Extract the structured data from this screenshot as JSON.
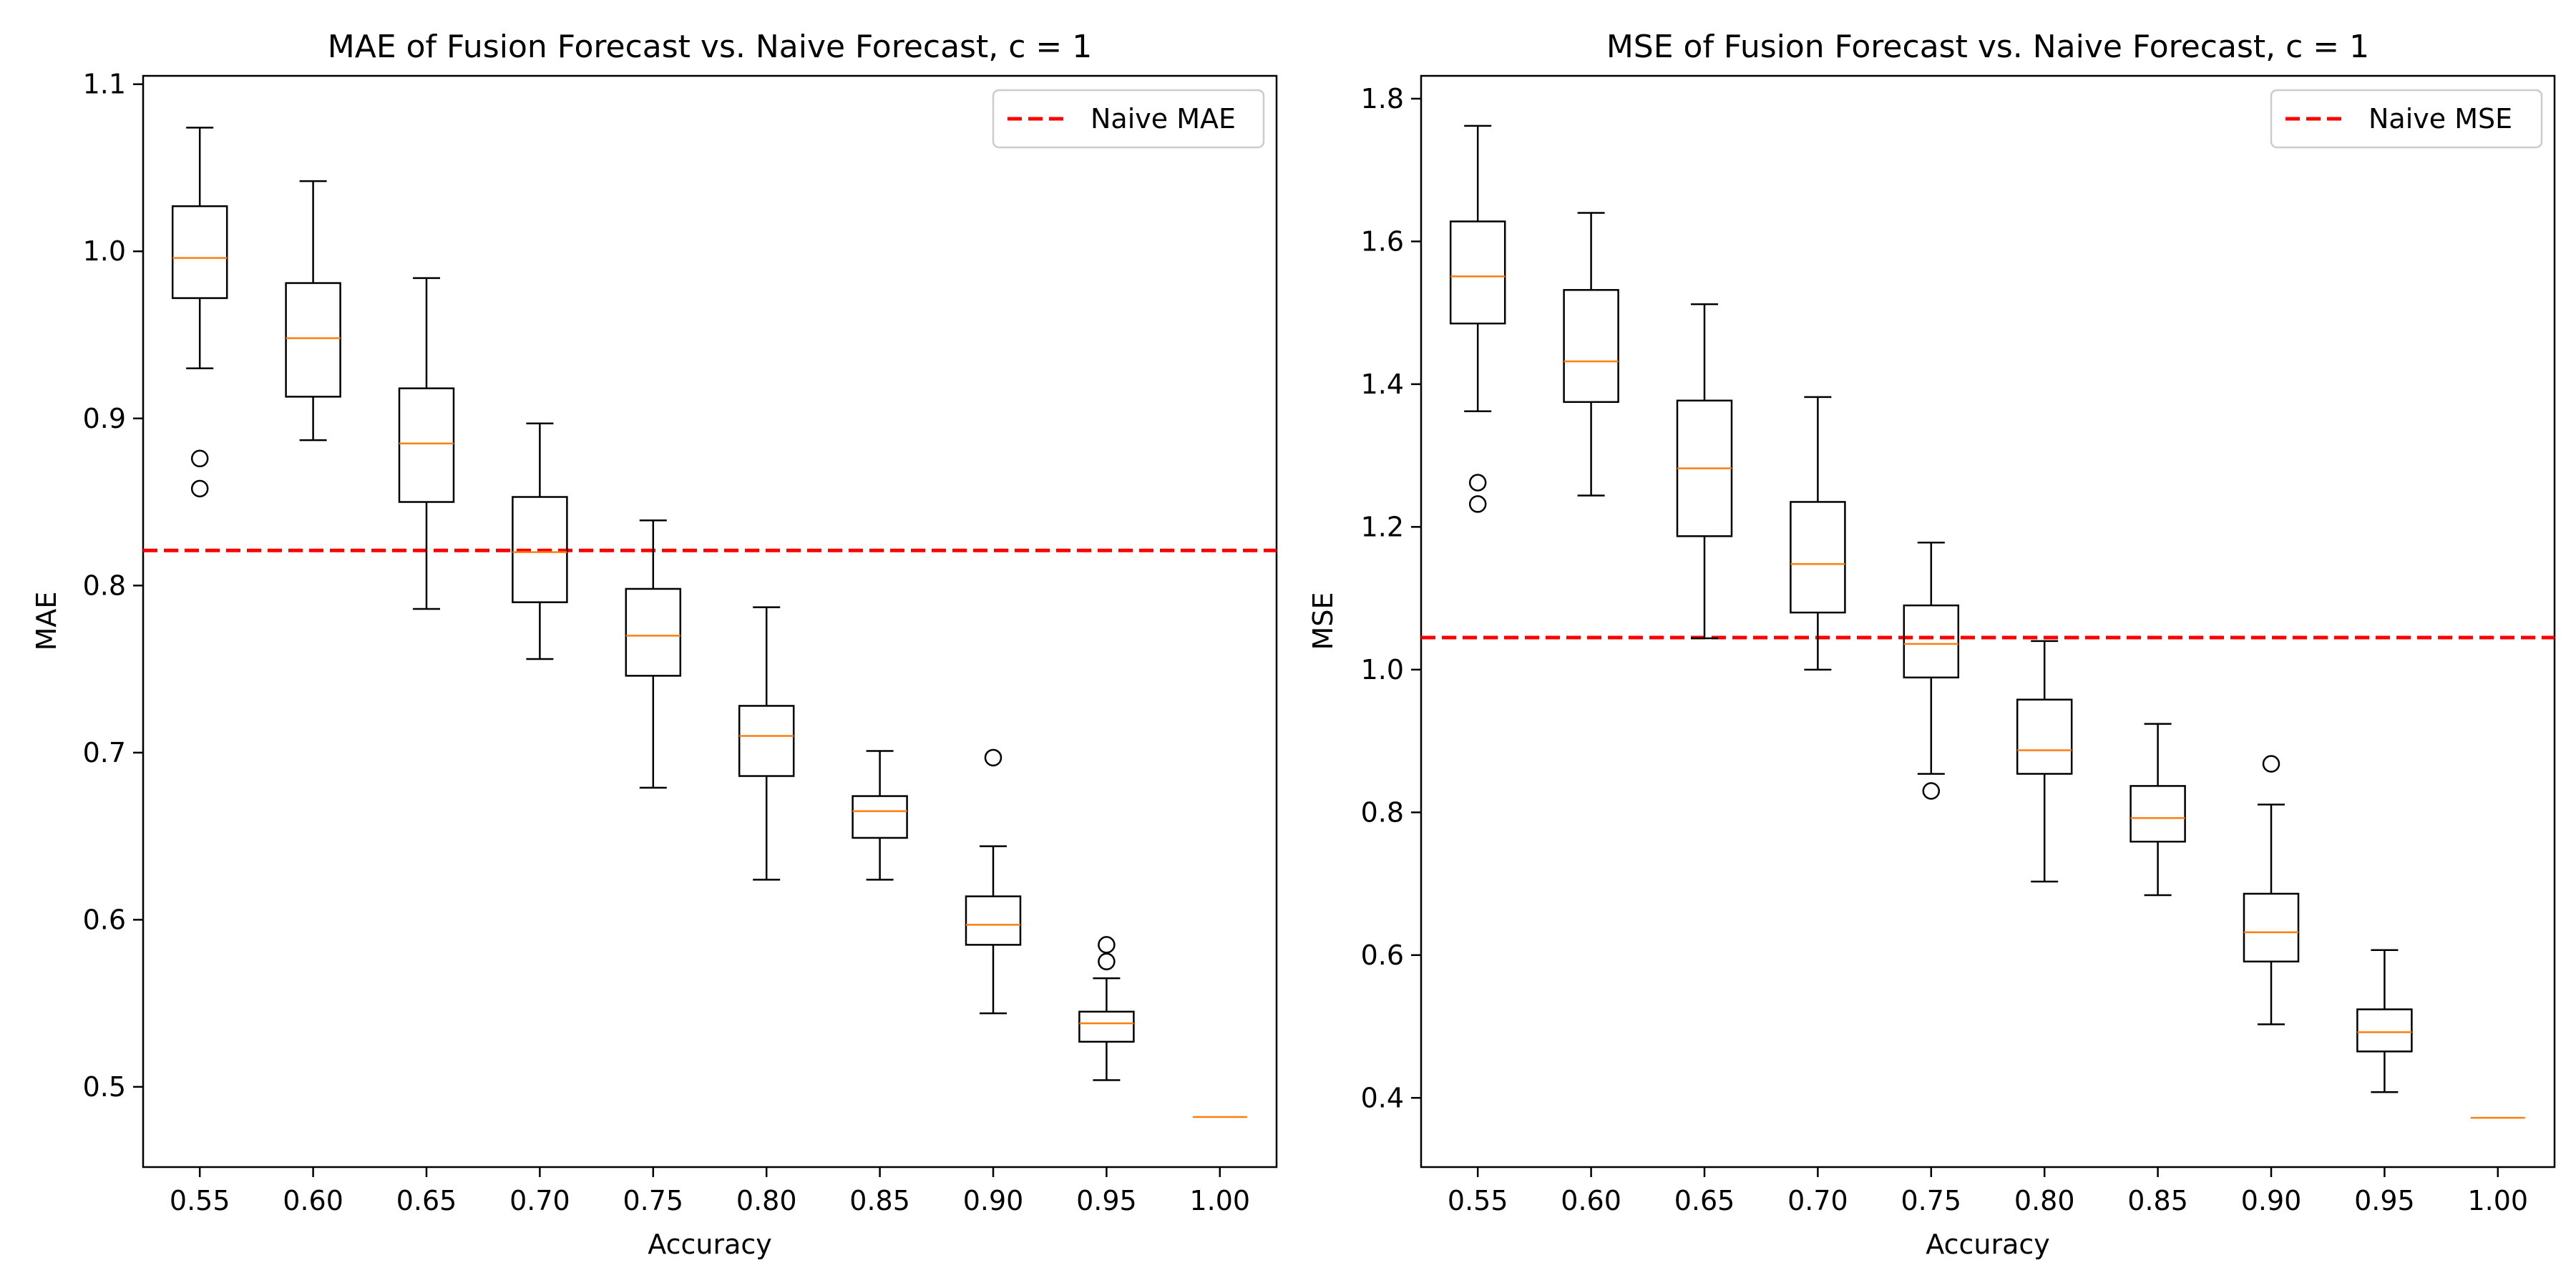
{
  "colors": {
    "box": "#000000",
    "median": "#ff7f0e",
    "naive": "#ff0000",
    "legend_border": "#cccccc"
  },
  "chart_data": [
    {
      "type": "box",
      "title": "MAE of Fusion Forecast vs. Naive Forecast, c = 1",
      "xlabel": "Accuracy",
      "ylabel": "MAE",
      "ylim": [
        0.452,
        1.105
      ],
      "yticks": [
        "0.5",
        "0.6",
        "0.7",
        "0.8",
        "0.9",
        "1.0",
        "1.1"
      ],
      "categories": [
        "0.55",
        "0.60",
        "0.65",
        "0.70",
        "0.75",
        "0.80",
        "0.85",
        "0.90",
        "0.95",
        "1.00"
      ],
      "boxes": [
        {
          "whislo": 0.93,
          "q1": 0.972,
          "med": 0.996,
          "q3": 1.027,
          "whishi": 1.074,
          "fliers": [
            0.876,
            0.858
          ]
        },
        {
          "whislo": 0.887,
          "q1": 0.913,
          "med": 0.948,
          "q3": 0.981,
          "whishi": 1.042,
          "fliers": []
        },
        {
          "whislo": 0.786,
          "q1": 0.85,
          "med": 0.885,
          "q3": 0.918,
          "whishi": 0.984,
          "fliers": []
        },
        {
          "whislo": 0.756,
          "q1": 0.79,
          "med": 0.82,
          "q3": 0.853,
          "whishi": 0.897,
          "fliers": []
        },
        {
          "whislo": 0.679,
          "q1": 0.746,
          "med": 0.77,
          "q3": 0.798,
          "whishi": 0.839,
          "fliers": []
        },
        {
          "whislo": 0.624,
          "q1": 0.686,
          "med": 0.71,
          "q3": 0.728,
          "whishi": 0.787,
          "fliers": []
        },
        {
          "whislo": 0.624,
          "q1": 0.649,
          "med": 0.665,
          "q3": 0.674,
          "whishi": 0.701,
          "fliers": []
        },
        {
          "whislo": 0.544,
          "q1": 0.585,
          "med": 0.597,
          "q3": 0.614,
          "whishi": 0.644,
          "fliers": [
            0.697
          ]
        },
        {
          "whislo": 0.504,
          "q1": 0.527,
          "med": 0.538,
          "q3": 0.545,
          "whishi": 0.565,
          "fliers": [
            0.585,
            0.575
          ]
        },
        {
          "whislo": 0.482,
          "q1": 0.482,
          "med": 0.482,
          "q3": 0.482,
          "whishi": 0.482,
          "fliers": []
        }
      ],
      "reference_line": {
        "value": 0.821,
        "label": "Naive MAE"
      },
      "legend_position": "upper right"
    },
    {
      "type": "box",
      "title": "MSE of Fusion Forecast vs. Naive Forecast, c = 1",
      "xlabel": "Accuracy",
      "ylabel": "MSE",
      "ylim": [
        0.303,
        1.832
      ],
      "yticks": [
        "0.4",
        "0.6",
        "0.8",
        "1.0",
        "1.2",
        "1.4",
        "1.6",
        "1.8"
      ],
      "categories": [
        "0.55",
        "0.60",
        "0.65",
        "0.70",
        "0.75",
        "0.80",
        "0.85",
        "0.90",
        "0.95",
        "1.00"
      ],
      "boxes": [
        {
          "whislo": 1.362,
          "q1": 1.485,
          "med": 1.551,
          "q3": 1.628,
          "whishi": 1.762,
          "fliers": [
            1.262,
            1.232
          ]
        },
        {
          "whislo": 1.244,
          "q1": 1.375,
          "med": 1.432,
          "q3": 1.532,
          "whishi": 1.64,
          "fliers": []
        },
        {
          "whislo": 1.044,
          "q1": 1.187,
          "med": 1.282,
          "q3": 1.377,
          "whishi": 1.512,
          "fliers": []
        },
        {
          "whislo": 1.0,
          "q1": 1.08,
          "med": 1.148,
          "q3": 1.235,
          "whishi": 1.382,
          "fliers": []
        },
        {
          "whislo": 0.854,
          "q1": 0.989,
          "med": 1.036,
          "q3": 1.09,
          "whishi": 1.178,
          "fliers": [
            0.83
          ]
        },
        {
          "whislo": 0.703,
          "q1": 0.854,
          "med": 0.887,
          "q3": 0.958,
          "whishi": 1.04,
          "fliers": []
        },
        {
          "whislo": 0.684,
          "q1": 0.759,
          "med": 0.792,
          "q3": 0.837,
          "whishi": 0.924,
          "fliers": []
        },
        {
          "whislo": 0.503,
          "q1": 0.591,
          "med": 0.632,
          "q3": 0.686,
          "whishi": 0.811,
          "fliers": [
            0.868
          ]
        },
        {
          "whislo": 0.408,
          "q1": 0.465,
          "med": 0.492,
          "q3": 0.524,
          "whishi": 0.607,
          "fliers": []
        },
        {
          "whislo": 0.372,
          "q1": 0.372,
          "med": 0.372,
          "q3": 0.372,
          "whishi": 0.372,
          "fliers": []
        }
      ],
      "reference_line": {
        "value": 1.045,
        "label": "Naive MSE"
      },
      "legend_position": "upper right"
    }
  ]
}
